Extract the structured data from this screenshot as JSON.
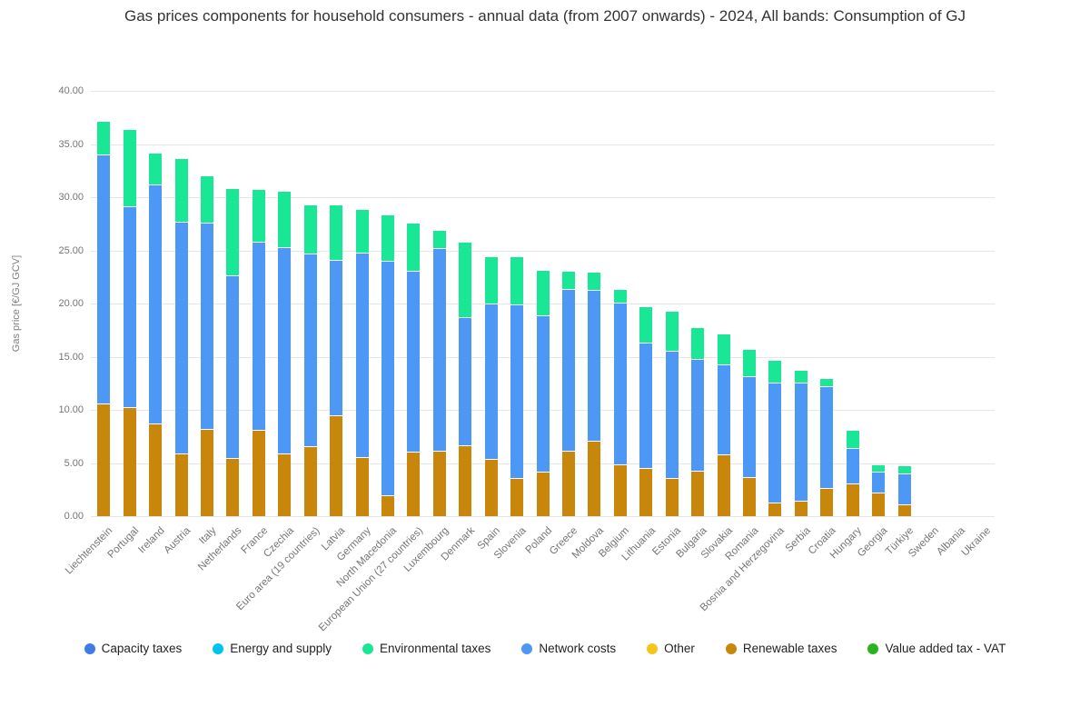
{
  "title": "Gas prices components for household consumers - annual data (from 2007 onwards) - 2024, All bands: Consumption of GJ",
  "y_axis": {
    "label": "Gas price [€/GJ GCV]",
    "ticks": [
      "0.00",
      "5.00",
      "10.00",
      "15.00",
      "20.00",
      "25.00",
      "30.00",
      "35.00",
      "40.00"
    ],
    "tick_step": 5,
    "max": 40
  },
  "legend": [
    {
      "label": "Capacity taxes",
      "color": "#3D7BE5"
    },
    {
      "label": "Energy and supply",
      "color": "#00C4F0"
    },
    {
      "label": "Environmental taxes",
      "color": "#19E795"
    },
    {
      "label": "Network costs",
      "color": "#4D97F5"
    },
    {
      "label": "Other",
      "color": "#F6C51A"
    },
    {
      "label": "Renewable taxes",
      "color": "#C8860B"
    },
    {
      "label": "Value added tax - VAT",
      "color": "#29B41E"
    }
  ],
  "chart_data": {
    "type": "bar",
    "stacked": true,
    "title": "Gas prices components for household consumers - annual data (from 2007 onwards) - 2024, All bands: Consumption of GJ",
    "xlabel": "",
    "ylabel": "Gas price [€/GJ GCV]",
    "ylim": [
      0,
      40
    ],
    "ytick_step": 5,
    "grid": true,
    "legend_position": "bottom",
    "categories": [
      "Liechtenstein",
      "Portugal",
      "Ireland",
      "Austria",
      "Italy",
      "Netherlands",
      "France",
      "Czechia",
      "Euro area (19 countries)",
      "Latvia",
      "Germany",
      "North Macedonia",
      "European Union (27 countries)",
      "Luxembourg",
      "Denmark",
      "Spain",
      "Slovenia",
      "Poland",
      "Greece",
      "Moldova",
      "Belgium",
      "Lithuania",
      "Estonia",
      "Bulgaria",
      "Slovakia",
      "Romania",
      "Bosnia and Herzegovina",
      "Serbia",
      "Croatia",
      "Hungary",
      "Georgia",
      "Türkiye",
      "Sweden",
      "Albania",
      "Ukraine"
    ],
    "stack_order_bottom_to_top": [
      "Renewable taxes",
      "Network costs",
      "Environmental taxes"
    ],
    "series": [
      {
        "name": "Renewable taxes",
        "color": "#C8860B",
        "values": [
          10.5,
          10.2,
          8.6,
          5.8,
          8.1,
          5.4,
          8.0,
          5.8,
          6.5,
          9.4,
          5.5,
          1.9,
          6.0,
          6.1,
          6.6,
          5.3,
          3.5,
          4.1,
          6.1,
          7.0,
          4.8,
          4.4,
          3.5,
          4.2,
          5.7,
          3.6,
          1.2,
          1.4,
          2.6,
          3.0,
          2.1,
          1.0,
          0,
          0,
          0
        ]
      },
      {
        "name": "Network costs",
        "color": "#4D97F5",
        "values": [
          23.4,
          18.9,
          22.5,
          21.8,
          19.4,
          17.2,
          17.7,
          19.4,
          18.1,
          14.6,
          19.2,
          22.0,
          17.0,
          19.0,
          12.0,
          14.6,
          16.3,
          14.7,
          15.2,
          14.2,
          15.2,
          11.8,
          12.0,
          10.5,
          8.5,
          9.5,
          11.3,
          11.1,
          9.5,
          3.3,
          2.0,
          2.9,
          0,
          0,
          0
        ]
      },
      {
        "name": "Environmental taxes",
        "color": "#19E795",
        "values": [
          3.2,
          7.2,
          3.0,
          6.0,
          4.5,
          8.2,
          5.0,
          5.3,
          4.6,
          5.2,
          4.1,
          4.4,
          4.5,
          1.7,
          7.1,
          4.5,
          4.6,
          4.3,
          1.7,
          1.7,
          1.3,
          3.5,
          3.7,
          3.0,
          2.9,
          2.5,
          2.1,
          1.2,
          0.8,
          1.7,
          0.7,
          0.8,
          0,
          0,
          0
        ]
      }
    ]
  }
}
